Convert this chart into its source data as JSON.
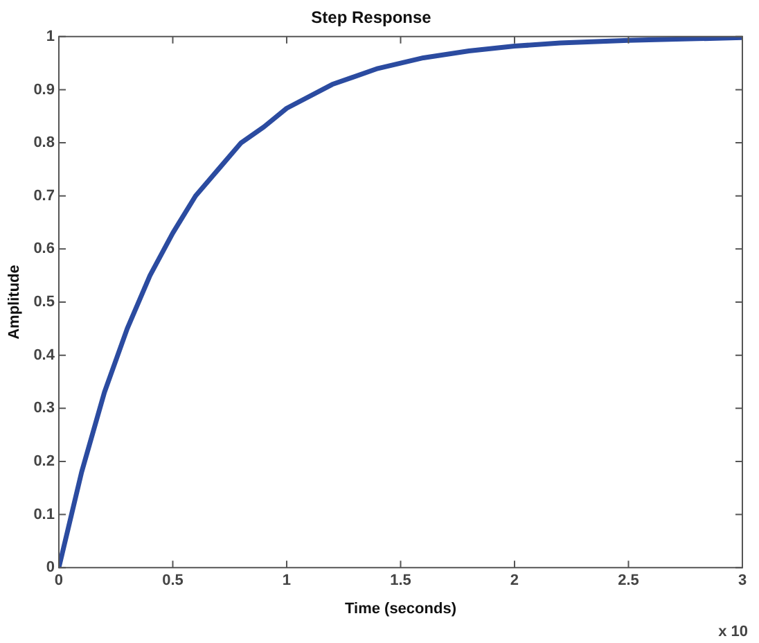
{
  "chart_data": {
    "type": "line",
    "title": "Step Response",
    "xlabel": "Time (seconds)",
    "ylabel": "Amplitude",
    "annotations": [
      "x 10"
    ],
    "x": [
      0,
      0.1,
      0.2,
      0.3,
      0.4,
      0.5,
      0.6,
      0.7,
      0.8,
      0.9,
      1.0,
      1.2,
      1.4,
      1.6,
      1.8,
      2.0,
      2.2,
      2.5,
      2.8,
      3.0
    ],
    "series": [
      {
        "color": "#2b4ba0",
        "values": [
          0,
          0.18,
          0.33,
          0.45,
          0.55,
          0.63,
          0.7,
          0.75,
          0.8,
          0.83,
          0.865,
          0.91,
          0.94,
          0.96,
          0.973,
          0.982,
          0.988,
          0.993,
          0.996,
          0.998
        ]
      }
    ],
    "xlim": [
      0,
      3
    ],
    "ylim": [
      0,
      1
    ],
    "xticks": [
      0,
      0.5,
      1,
      1.5,
      2,
      2.5,
      3
    ],
    "yticks": [
      0,
      0.1,
      0.2,
      0.3,
      0.4,
      0.5,
      0.6,
      0.7,
      0.8,
      0.9,
      1
    ],
    "grid": false,
    "legend": false,
    "marker": "none",
    "line_style": "solid"
  }
}
